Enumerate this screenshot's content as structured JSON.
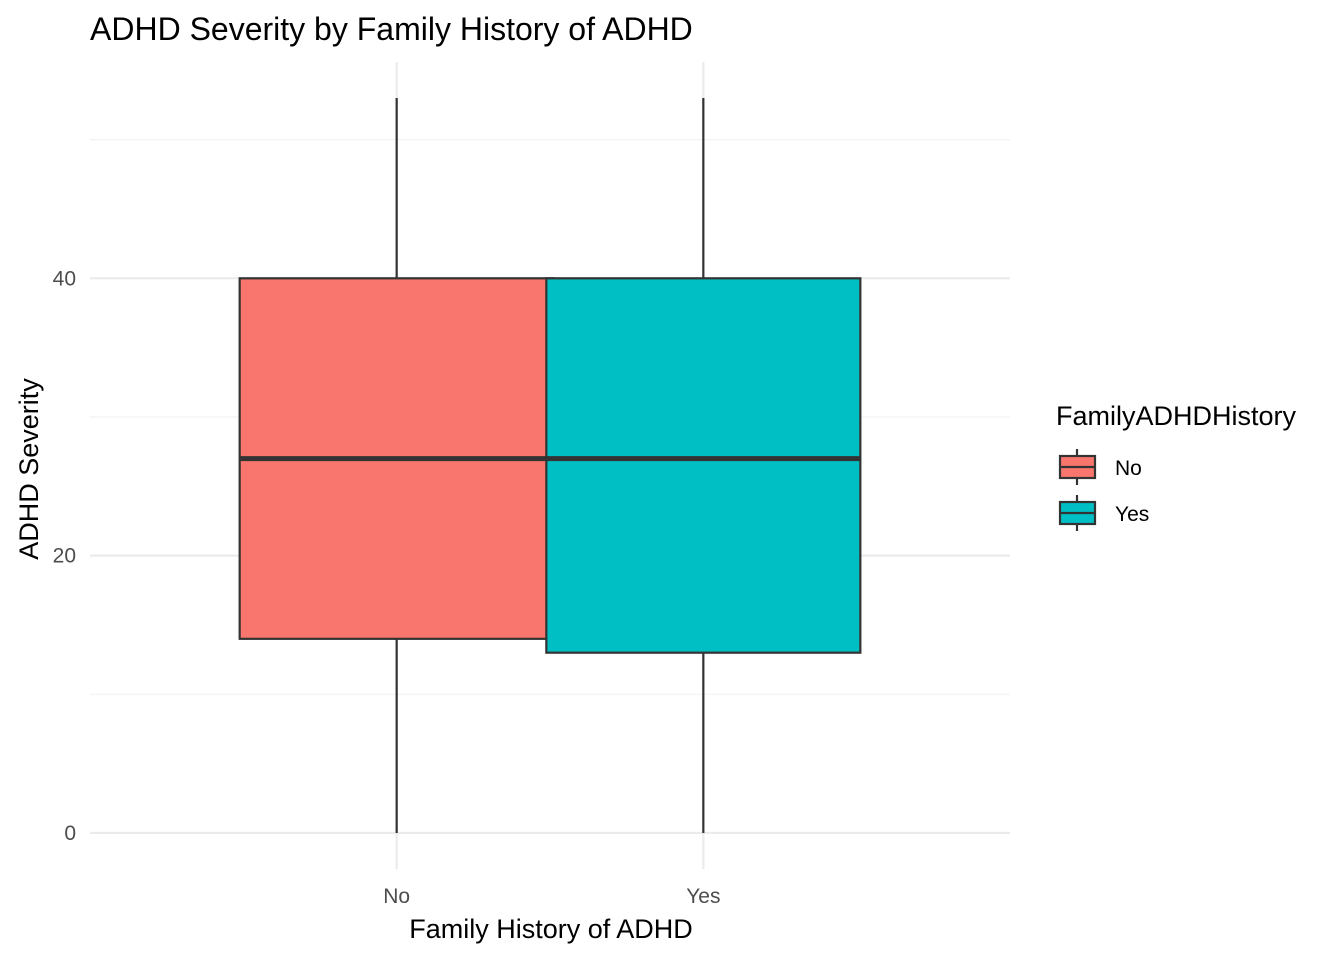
{
  "chart_data": {
    "type": "boxplot",
    "title": "ADHD Severity by Family History of ADHD",
    "xlabel": "Family History of ADHD",
    "ylabel": "ADHD Severity",
    "categories": [
      "No",
      "Yes"
    ],
    "boxes": [
      {
        "category": "No",
        "min": 0,
        "q1": 14,
        "median": 27,
        "q3": 40,
        "max": 53,
        "color": "#F8766D"
      },
      {
        "category": "Yes",
        "min": 0,
        "q1": 13,
        "median": 27,
        "q3": 40,
        "max": 53,
        "color": "#00BFC4"
      }
    ],
    "ylim": [
      -2.6,
      55.6
    ],
    "yticks": [
      0,
      20,
      40
    ],
    "y_minor_gridlines": [
      10,
      30,
      50
    ],
    "grid": true,
    "legend": {
      "title": "FamilyADHDHistory",
      "position": "right",
      "entries": [
        {
          "label": "No",
          "color": "#F8766D"
        },
        {
          "label": "Yes",
          "color": "#00BFC4"
        }
      ]
    }
  }
}
